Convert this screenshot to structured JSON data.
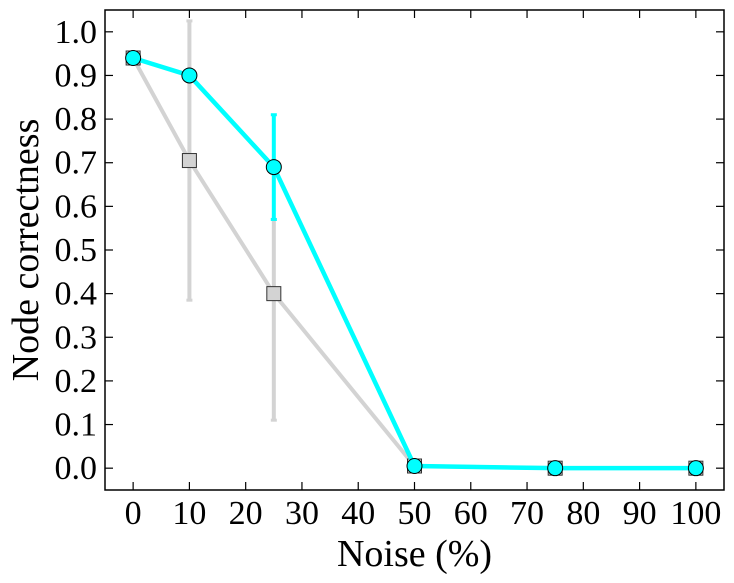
{
  "chart_data": {
    "type": "line",
    "xlabel": "Noise (%)",
    "ylabel": "Node correctness",
    "xlim": [
      -5,
      105
    ],
    "ylim": [
      -0.05,
      1.05
    ],
    "x_ticks": [
      0,
      10,
      20,
      30,
      40,
      50,
      60,
      70,
      80,
      90,
      100
    ],
    "x_tick_labels": [
      "0",
      "10",
      "20",
      "30",
      "40",
      "50",
      "60",
      "70",
      "80",
      "90",
      "100"
    ],
    "y_ticks": [
      0.0,
      0.1,
      0.2,
      0.3,
      0.4,
      0.5,
      0.6,
      0.7,
      0.8,
      0.9,
      1.0
    ],
    "y_tick_labels": [
      "0.0",
      "0.1",
      "0.2",
      "0.3",
      "0.4",
      "0.5",
      "0.6",
      "0.7",
      "0.8",
      "0.9",
      "1.0"
    ],
    "grid": false,
    "series": [
      {
        "marker": "square",
        "color": "#d3d3d3",
        "x": [
          0,
          10,
          25,
          50,
          75,
          100
        ],
        "values": [
          0.94,
          0.705,
          0.4,
          0.005,
          0.0,
          0.0
        ],
        "err_lower": [
          0.0,
          0.32,
          0.29,
          0.0,
          0.0,
          0.0
        ],
        "err_upper": [
          0.0,
          0.32,
          0.17,
          0.0,
          0.0,
          0.0
        ]
      },
      {
        "marker": "circle",
        "color": "#00ffff",
        "x": [
          0,
          10,
          25,
          50,
          75,
          100
        ],
        "values": [
          0.94,
          0.9,
          0.69,
          0.005,
          0.0,
          0.0
        ],
        "err_lower": [
          0.0,
          0.0,
          0.12,
          0.0,
          0.0,
          0.0
        ],
        "err_upper": [
          0.0,
          0.0,
          0.12,
          0.0,
          0.0,
          0.0
        ]
      }
    ]
  }
}
